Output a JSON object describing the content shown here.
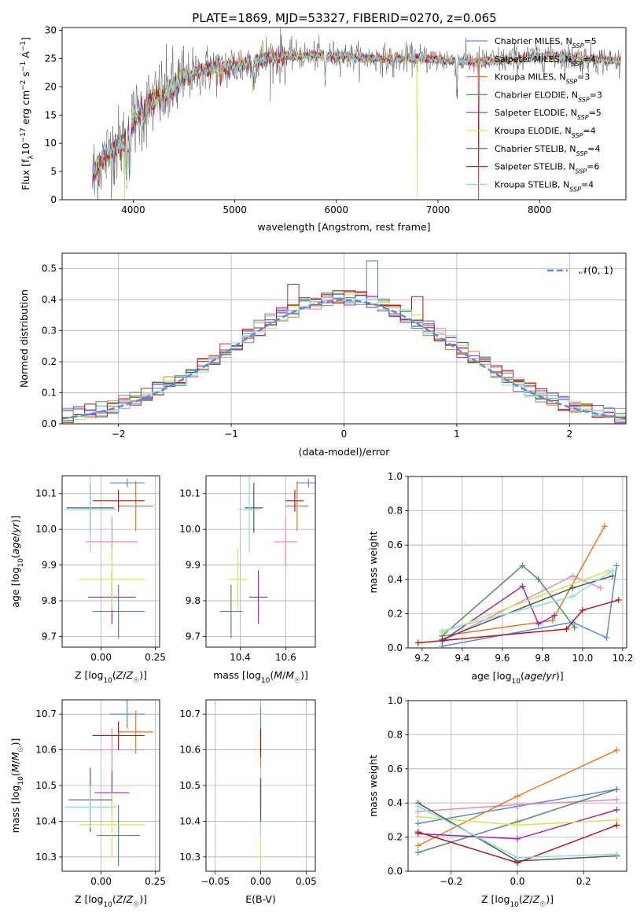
{
  "figure_title": "PLATE=1869, MJD=53327, FIBERID=0270, z=0.065",
  "colors": {
    "Chabrier MILES": "#5b8ad8",
    "Salpeter MILES": "#e88ab8",
    "Kroupa MILES": "#e07a20",
    "Chabrier ELODIE": "#5a8a6a",
    "Salpeter ELODIE": "#9a2ab8",
    "Kroupa ELODIE": "#cfe65a",
    "Chabrier STELIB": "#555555",
    "Salpeter STELIB": "#b01818",
    "Kroupa STELIB": "#88dde0",
    "gauss": "#5b8ad8"
  },
  "chart_data": [
    {
      "id": "spectrum",
      "type": "line",
      "xlabel": "wavelength [Angstrom, rest frame]",
      "ylabel": "Flux [f_λ10^-17 erg cm^-2 s^-1 A^-1]",
      "xlim": [
        3300,
        8850
      ],
      "ylim": [
        0,
        30.5
      ],
      "xticks": [
        4000,
        5000,
        6000,
        7000,
        8000
      ],
      "yticks": [
        0,
        5,
        10,
        15,
        20,
        25,
        30
      ],
      "grid": false,
      "legend_position": "top-right",
      "legend": [
        {
          "model": "Chabrier MILES",
          "label": "Chabrier MILES, N",
          "sub": "SSP",
          "n": "=5"
        },
        {
          "model": "Salpeter MILES",
          "label": "Salpeter MILES, N",
          "sub": "SSP",
          "n": "=4"
        },
        {
          "model": "Kroupa MILES",
          "label": "Kroupa MILES, N",
          "sub": "SSP",
          "n": "=3"
        },
        {
          "model": "Chabrier ELODIE",
          "label": "Chabrier ELODIE, N",
          "sub": "SSP",
          "n": "=3"
        },
        {
          "model": "Salpeter ELODIE",
          "label": "Salpeter ELODIE, N",
          "sub": "SSP",
          "n": "=5"
        },
        {
          "model": "Kroupa ELODIE",
          "label": "Kroupa ELODIE, N",
          "sub": "SSP",
          "n": "=4"
        },
        {
          "model": "Chabrier STELIB",
          "label": "Chabrier STELIB, N",
          "sub": "SSP",
          "n": "=4"
        },
        {
          "model": "Salpeter STELIB",
          "label": "Salpeter STELIB, N",
          "sub": "SSP",
          "n": "=6"
        },
        {
          "model": "Kroupa STELIB",
          "label": "Kroupa STELIB, N",
          "sub": "SSP",
          "n": "=4"
        }
      ],
      "continuum": {
        "x": [
          3600,
          3650,
          3700,
          3800,
          3900,
          3950,
          4000,
          4100,
          4200,
          4300,
          4400,
          4500,
          4700,
          4900,
          5100,
          5300,
          5500,
          5800,
          6000,
          6300,
          6600,
          6900,
          7200,
          7500,
          7800,
          8100,
          8400,
          8800
        ],
        "y": [
          4.5,
          6,
          7,
          9,
          10,
          12,
          14,
          16,
          17.5,
          18.5,
          20,
          21.5,
          23,
          23.5,
          24,
          25,
          25.5,
          25.5,
          25.5,
          25,
          25,
          25,
          24.5,
          24.5,
          25,
          25.5,
          25,
          24.5
        ]
      },
      "absorption_lines": [
        {
          "x": 3934,
          "y": 3
        },
        {
          "x": 3968,
          "y": 5
        },
        {
          "x": 4102,
          "y": 14
        },
        {
          "x": 4300,
          "y": 17
        },
        {
          "x": 4861,
          "y": 21
        },
        {
          "x": 5175,
          "y": 21
        },
        {
          "x": 5890,
          "y": 21
        },
        {
          "x": 6563,
          "y": 22
        },
        {
          "x": 7186,
          "y": 19
        }
      ],
      "glitches": [
        {
          "model": "Kroupa ELODIE",
          "x": 3915,
          "y": 0.1
        },
        {
          "model": "Kroupa ELODIE",
          "x": 6795,
          "y": 0.1
        },
        {
          "model": "Salpeter STELIB",
          "x": 7400,
          "y": 0.1
        }
      ]
    },
    {
      "id": "residuals",
      "type": "histogram",
      "xlabel": "(data-model)/error",
      "ylabel": "Normed distribution",
      "xlim": [
        -2.5,
        2.5
      ],
      "ylim": [
        0,
        0.55
      ],
      "xticks": [
        -2,
        -1,
        0,
        1,
        2
      ],
      "yticks": [
        0.0,
        0.1,
        0.2,
        0.3,
        0.4,
        0.5
      ],
      "grid": true,
      "bin_width": 0.1,
      "legend": {
        "label": "𝒩(0, 1)"
      },
      "spiky_bins": [
        {
          "x": 0.2,
          "y": 0.525
        },
        {
          "x": -0.5,
          "y": 0.45
        },
        {
          "x": 0.6,
          "y": 0.41
        }
      ]
    },
    {
      "id": "Z_vs_age",
      "type": "errorbar",
      "xlabel": "Z [log10(Z/Z☉)]",
      "ylabel": "age [log10(age/yr)]",
      "xlim": [
        -0.18,
        0.27
      ],
      "ylim": [
        9.67,
        10.15
      ],
      "xticks": [
        0.0,
        0.25
      ],
      "yticks": [
        9.7,
        9.8,
        9.9,
        10.0,
        10.1
      ],
      "grid": true,
      "points": [
        {
          "model": "Chabrier MILES",
          "x": 0.12,
          "xerr": 0.08,
          "y": 10.13,
          "yerr": 0.012
        },
        {
          "model": "Salpeter MILES",
          "x": 0.05,
          "xerr": 0.12,
          "y": 9.965,
          "yerr": 0.07
        },
        {
          "model": "Kroupa MILES",
          "x": 0.16,
          "xerr": 0.08,
          "y": 10.065,
          "yerr": 0.07
        },
        {
          "model": "Chabrier ELODIE",
          "x": 0.08,
          "xerr": 0.12,
          "y": 9.77,
          "yerr": 0.075
        },
        {
          "model": "Salpeter ELODIE",
          "x": 0.05,
          "xerr": 0.11,
          "y": 9.81,
          "yerr": 0.075
        },
        {
          "model": "Kroupa ELODIE",
          "x": 0.05,
          "xerr": 0.15,
          "y": 9.86,
          "yerr": 0.085
        },
        {
          "model": "Chabrier STELIB",
          "x": -0.05,
          "xerr": 0.11,
          "y": 10.06,
          "yerr": 0.07
        },
        {
          "model": "Salpeter STELIB",
          "x": 0.08,
          "xerr": 0.12,
          "y": 10.08,
          "yerr": 0.03
        },
        {
          "model": "Kroupa STELIB",
          "x": -0.05,
          "xerr": 0.12,
          "y": 10.055,
          "yerr": 0.12
        }
      ]
    },
    {
      "id": "mass_vs_age",
      "type": "errorbar",
      "xlabel": "mass [log10(M/M☉)]",
      "ylabel": "",
      "xlim": [
        10.25,
        10.73
      ],
      "ylim": [
        9.67,
        10.15
      ],
      "xticks": [
        10.4,
        10.6
      ],
      "yticks": [
        9.7,
        9.8,
        9.9,
        10.0,
        10.1
      ],
      "grid": true,
      "points": [
        {
          "model": "Chabrier MILES",
          "x": 10.7,
          "xerr": 0.05,
          "y": 10.13,
          "yerr": 0.012
        },
        {
          "model": "Salpeter MILES",
          "x": 10.6,
          "xerr": 0.05,
          "y": 9.965,
          "yerr": 0.07
        },
        {
          "model": "Kroupa MILES",
          "x": 10.65,
          "xerr": 0.05,
          "y": 10.065,
          "yerr": 0.07
        },
        {
          "model": "Chabrier ELODIE",
          "x": 10.36,
          "xerr": 0.05,
          "y": 9.77,
          "yerr": 0.075
        },
        {
          "model": "Salpeter ELODIE",
          "x": 10.48,
          "xerr": 0.04,
          "y": 9.81,
          "yerr": 0.075
        },
        {
          "model": "Kroupa ELODIE",
          "x": 10.39,
          "xerr": 0.04,
          "y": 9.86,
          "yerr": 0.085
        },
        {
          "model": "Chabrier STELIB",
          "x": 10.46,
          "xerr": 0.04,
          "y": 10.06,
          "yerr": 0.07
        },
        {
          "model": "Salpeter STELIB",
          "x": 10.64,
          "xerr": 0.04,
          "y": 10.08,
          "yerr": 0.03
        },
        {
          "model": "Kroupa STELIB",
          "x": 10.44,
          "xerr": 0.05,
          "y": 10.055,
          "yerr": 0.12
        }
      ]
    },
    {
      "id": "age_vs_mass_weight",
      "type": "line",
      "xlabel": "age [log10(age/yr)]",
      "ylabel": "mass weight",
      "xlim": [
        9.13,
        10.22
      ],
      "ylim": [
        0,
        1
      ],
      "xticks": [
        9.2,
        9.4,
        9.6,
        9.8,
        10.0,
        10.2
      ],
      "yticks": [
        0.0,
        0.2,
        0.4,
        0.6,
        0.8,
        1.0
      ],
      "grid": true,
      "series": [
        {
          "model": "Chabrier MILES",
          "x": [
            9.3,
            9.95,
            10.12,
            10.17
          ],
          "y": [
            0.01,
            0.15,
            0.06,
            0.48
          ]
        },
        {
          "model": "Salpeter MILES",
          "x": [
            9.3,
            9.95,
            10.09
          ],
          "y": [
            0.04,
            0.42,
            0.35
          ]
        },
        {
          "model": "Kroupa MILES",
          "x": [
            9.3,
            9.85,
            10.11
          ],
          "y": [
            0.07,
            0.16,
            0.71
          ]
        },
        {
          "model": "Chabrier ELODIE",
          "x": [
            9.3,
            9.7,
            9.78,
            9.96
          ],
          "y": [
            0.07,
            0.48,
            0.4,
            0.12
          ]
        },
        {
          "model": "Salpeter ELODIE",
          "x": [
            9.3,
            9.7,
            9.78,
            9.86
          ],
          "y": [
            0.04,
            0.36,
            0.14,
            0.19
          ]
        },
        {
          "model": "Kroupa ELODIE",
          "x": [
            9.3,
            9.78,
            10.13
          ],
          "y": [
            0.09,
            0.3,
            0.45
          ]
        },
        {
          "model": "Chabrier STELIB",
          "x": [
            9.3,
            9.95,
            10.15
          ],
          "y": [
            0.05,
            0.35,
            0.42
          ]
        },
        {
          "model": "Salpeter STELIB",
          "x": [
            9.18,
            9.92,
            10.0,
            10.18
          ],
          "y": [
            0.03,
            0.11,
            0.22,
            0.28
          ]
        },
        {
          "model": "Kroupa STELIB",
          "x": [
            9.3,
            9.95,
            10.15
          ],
          "y": [
            0.1,
            0.3,
            0.45
          ]
        }
      ]
    },
    {
      "id": "Z_vs_mass",
      "type": "errorbar",
      "xlabel": "Z [log10(Z/Z☉)]",
      "ylabel": "mass [log10(M/M☉)]",
      "xlim": [
        -0.18,
        0.27
      ],
      "ylim": [
        10.26,
        10.74
      ],
      "xticks": [
        0.0,
        0.25
      ],
      "yticks": [
        10.3,
        10.4,
        10.5,
        10.6,
        10.7
      ],
      "grid": true,
      "points": [
        {
          "model": "Chabrier MILES",
          "x": 0.12,
          "xerr": 0.08,
          "y": 10.7,
          "yerr": 0.04
        },
        {
          "model": "Salpeter MILES",
          "x": 0.05,
          "xerr": 0.15,
          "y": 10.6,
          "yerr": 0.06
        },
        {
          "model": "Kroupa MILES",
          "x": 0.16,
          "xerr": 0.08,
          "y": 10.65,
          "yerr": 0.06
        },
        {
          "model": "Chabrier ELODIE",
          "x": 0.08,
          "xerr": 0.1,
          "y": 10.36,
          "yerr": 0.085
        },
        {
          "model": "Salpeter ELODIE",
          "x": 0.05,
          "xerr": 0.08,
          "y": 10.48,
          "yerr": 0.06
        },
        {
          "model": "Kroupa ELODIE",
          "x": 0.05,
          "xerr": 0.15,
          "y": 10.39,
          "yerr": 0.09
        },
        {
          "model": "Chabrier STELIB",
          "x": -0.05,
          "xerr": 0.1,
          "y": 10.46,
          "yerr": 0.09
        },
        {
          "model": "Salpeter STELIB",
          "x": 0.08,
          "xerr": 0.12,
          "y": 10.64,
          "yerr": 0.04
        },
        {
          "model": "Kroupa STELIB",
          "x": -0.05,
          "xerr": 0.12,
          "y": 10.44,
          "yerr": 0.06
        }
      ]
    },
    {
      "id": "EBV_vs_mass",
      "type": "errorbar",
      "xlabel": "E(B-V)",
      "ylabel": "",
      "xlim": [
        -0.06,
        0.06
      ],
      "ylim": [
        10.26,
        10.74
      ],
      "xticks": [
        -0.05,
        0.0,
        0.05
      ],
      "yticks": [
        10.3,
        10.4,
        10.5,
        10.6,
        10.7
      ],
      "grid": true,
      "points": [
        {
          "model": "Chabrier MILES",
          "x": 0,
          "xerr": 0,
          "y": 10.68,
          "yerr": 0.04
        },
        {
          "model": "Kroupa ELODIE",
          "x": 0,
          "xerr": 0,
          "y": 10.36,
          "yerr": 0.08
        },
        {
          "model": "Kroupa STELIB",
          "x": 0,
          "xerr": 0,
          "y": 10.44,
          "yerr": 0.08
        },
        {
          "model": "Salpeter ELODIE",
          "x": 0,
          "xerr": 0,
          "y": 10.48,
          "yerr": 0.04
        },
        {
          "model": "Chabrier STELIB",
          "x": 0,
          "xerr": 0,
          "y": 10.46,
          "yerr": 0.06
        },
        {
          "model": "Kroupa MILES",
          "x": 0,
          "xerr": 0,
          "y": 10.6,
          "yerr": 0.05
        },
        {
          "model": "Salpeter STELIB",
          "x": 0,
          "xerr": 0,
          "y": 10.62,
          "yerr": 0.04
        }
      ]
    },
    {
      "id": "Z_vs_mass_weight",
      "type": "line",
      "xlabel": "Z [log10(Z/Z☉)]",
      "ylabel": "mass weight",
      "xlim": [
        -0.33,
        0.33
      ],
      "ylim": [
        0,
        1
      ],
      "xticks": [
        -0.2,
        0.0,
        0.2
      ],
      "yticks": [
        0.0,
        0.2,
        0.4,
        0.6,
        0.8,
        1.0
      ],
      "grid": true,
      "series": [
        {
          "model": "Chabrier MILES",
          "x": [
            -0.3,
            0.0,
            0.3
          ],
          "y": [
            0.28,
            0.38,
            0.48
          ]
        },
        {
          "model": "Salpeter MILES",
          "x": [
            -0.3,
            0.0,
            0.3
          ],
          "y": [
            0.35,
            0.39,
            0.42
          ]
        },
        {
          "model": "Kroupa MILES",
          "x": [
            -0.3,
            0.0,
            0.3
          ],
          "y": [
            0.15,
            0.44,
            0.71
          ]
        },
        {
          "model": "Chabrier ELODIE",
          "x": [
            -0.3,
            0.0,
            0.3
          ],
          "y": [
            0.11,
            0.29,
            0.48
          ]
        },
        {
          "model": "Salpeter ELODIE",
          "x": [
            -0.3,
            0.0,
            0.3
          ],
          "y": [
            0.22,
            0.19,
            0.36
          ]
        },
        {
          "model": "Kroupa ELODIE",
          "x": [
            -0.3,
            0.0,
            0.3
          ],
          "y": [
            0.32,
            0.27,
            0.3
          ]
        },
        {
          "model": "Chabrier STELIB",
          "x": [
            -0.3,
            0.0,
            0.3
          ],
          "y": [
            0.4,
            0.06,
            0.09
          ]
        },
        {
          "model": "Salpeter STELIB",
          "x": [
            -0.3,
            0.0,
            0.3
          ],
          "y": [
            0.23,
            0.05,
            0.27
          ]
        },
        {
          "model": "Kroupa STELIB",
          "x": [
            -0.3,
            0.0,
            0.3
          ],
          "y": [
            0.38,
            0.08,
            0.1
          ]
        }
      ]
    }
  ]
}
